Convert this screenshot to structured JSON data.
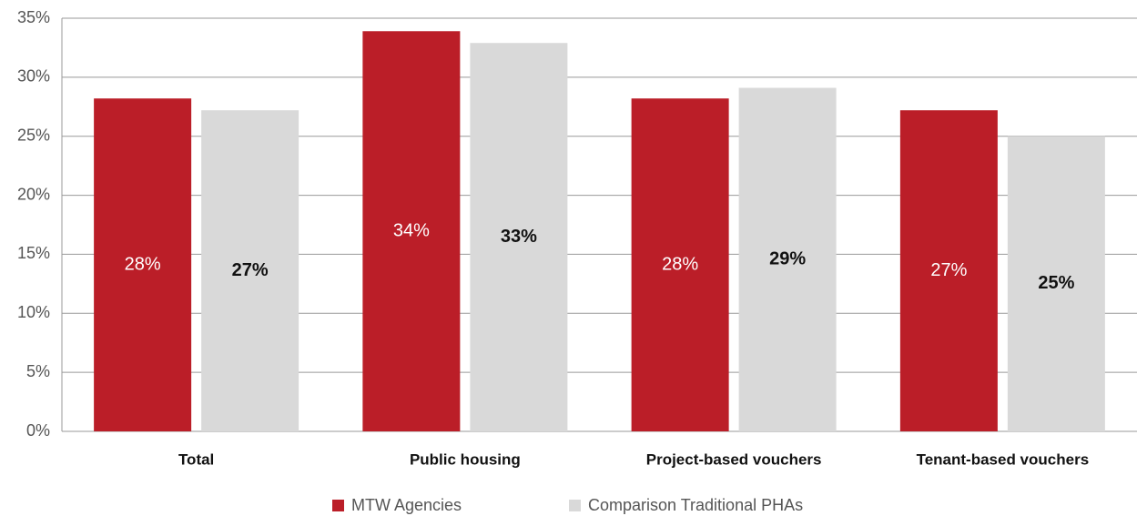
{
  "chart_data": {
    "type": "bar",
    "categories": [
      "Total",
      "Public housing",
      "Project-based vouchers",
      "Tenant-based vouchers"
    ],
    "series": [
      {
        "name": "MTW Agencies",
        "color": "#bb1e28",
        "label_color": "#ffffff",
        "values": [
          28.2,
          33.9,
          28.2,
          27.2
        ],
        "value_labels": [
          "28%",
          "34%",
          "28%",
          "27%"
        ]
      },
      {
        "name": "Comparison Traditional PHAs",
        "color": "#d9d9d9",
        "label_color": "#111111",
        "values": [
          27.2,
          32.9,
          29.1,
          25.0
        ],
        "value_labels": [
          "27%",
          "33%",
          "29%",
          "25%"
        ]
      }
    ],
    "ylim": [
      0,
      35
    ],
    "yticks": [
      {
        "value": 0,
        "label": "0%"
      },
      {
        "value": 5,
        "label": "5%"
      },
      {
        "value": 10,
        "label": "10%"
      },
      {
        "value": 15,
        "label": "15%"
      },
      {
        "value": 20,
        "label": "20%"
      },
      {
        "value": 25,
        "label": "25%"
      },
      {
        "value": 30,
        "label": "30%"
      },
      {
        "value": 35,
        "label": "35%"
      }
    ],
    "grid": true,
    "legend": "bottom"
  }
}
